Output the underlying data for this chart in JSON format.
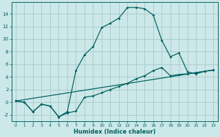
{
  "xlabel": "Humidex (Indice chaleur)",
  "bg_color": "#cce8e8",
  "grid_color": "#aacccc",
  "line_color": "#006060",
  "xlim": [
    -0.5,
    23.5
  ],
  "ylim": [
    -3.0,
    15.8
  ],
  "xticks": [
    0,
    1,
    2,
    3,
    4,
    5,
    6,
    7,
    8,
    9,
    10,
    11,
    12,
    13,
    14,
    15,
    16,
    17,
    18,
    19,
    20,
    21,
    22,
    23
  ],
  "yticks": [
    -2,
    0,
    2,
    4,
    6,
    8,
    10,
    12,
    14
  ],
  "series1_x": [
    0,
    1,
    2,
    3,
    4,
    5,
    6,
    7,
    8,
    9,
    10,
    11,
    12,
    13,
    14,
    15,
    16,
    17,
    18,
    19,
    20,
    21,
    22,
    23
  ],
  "series1_y": [
    0.2,
    0.0,
    -1.5,
    -0.3,
    -0.6,
    -2.3,
    -1.7,
    -1.4,
    0.8,
    1.0,
    1.5,
    2.0,
    2.5,
    3.0,
    3.7,
    4.2,
    5.0,
    5.5,
    4.2,
    4.4,
    4.5,
    4.7,
    4.9,
    5.1
  ],
  "series2_x": [
    0,
    1,
    2,
    3,
    4,
    5,
    6,
    7,
    8,
    9,
    10,
    11,
    12,
    13,
    14,
    15,
    16,
    17,
    18,
    19,
    20,
    21,
    22,
    23
  ],
  "series2_y": [
    0.2,
    0.0,
    -1.5,
    -0.3,
    -0.6,
    -2.3,
    -1.5,
    5.0,
    7.5,
    8.8,
    11.8,
    12.5,
    13.3,
    15.0,
    15.0,
    14.8,
    13.8,
    9.8,
    7.2,
    7.8,
    4.8,
    4.5,
    4.9,
    5.1
  ],
  "series3_x": [
    0,
    23
  ],
  "series3_y": [
    0.2,
    5.1
  ]
}
